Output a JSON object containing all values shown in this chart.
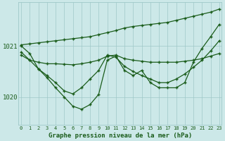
{
  "title": "Graphe pression niveau de la mer (hPa)",
  "bg_color": "#cce8e8",
  "grid_color": "#9fc8c8",
  "line_color": "#1a5c1a",
  "xlim": [
    -0.3,
    23.3
  ],
  "ylim": [
    1019.45,
    1021.85
  ],
  "yticks": [
    1020,
    1021
  ],
  "xticks": [
    0,
    1,
    2,
    3,
    4,
    5,
    6,
    7,
    8,
    9,
    10,
    11,
    12,
    13,
    14,
    15,
    16,
    17,
    18,
    19,
    20,
    21,
    22,
    23
  ],
  "line1_y": [
    1021.02,
    1021.04,
    1021.06,
    1021.08,
    1021.1,
    1021.12,
    1021.14,
    1021.16,
    1021.18,
    1021.22,
    1021.26,
    1021.3,
    1021.35,
    1021.38,
    1021.4,
    1021.42,
    1021.44,
    1021.46,
    1021.5,
    1021.54,
    1021.58,
    1021.62,
    1021.66,
    1021.72
  ],
  "line2_y": [
    1021.0,
    1020.85,
    1020.55,
    1020.38,
    1020.18,
    1020.0,
    1019.82,
    1019.76,
    1019.85,
    1020.05,
    1020.72,
    1020.8,
    1020.52,
    1020.42,
    1020.52,
    1020.28,
    1020.18,
    1020.18,
    1020.18,
    1020.28,
    1020.68,
    1020.95,
    1021.18,
    1021.42
  ],
  "line3_y": [
    1020.82,
    1020.72,
    1020.68,
    1020.65,
    1020.65,
    1020.64,
    1020.63,
    1020.65,
    1020.68,
    1020.72,
    1020.8,
    1020.82,
    1020.75,
    1020.72,
    1020.7,
    1020.68,
    1020.68,
    1020.68,
    1020.68,
    1020.7,
    1020.72,
    1020.75,
    1020.8,
    1020.85
  ],
  "line4_y": [
    1020.88,
    1020.72,
    1020.55,
    1020.42,
    1020.28,
    1020.12,
    1020.06,
    1020.18,
    1020.35,
    1020.52,
    1020.82,
    1020.78,
    1020.6,
    1020.5,
    1020.42,
    1020.35,
    1020.28,
    1020.28,
    1020.35,
    1020.45,
    1020.58,
    1020.72,
    1020.9,
    1021.1
  ]
}
